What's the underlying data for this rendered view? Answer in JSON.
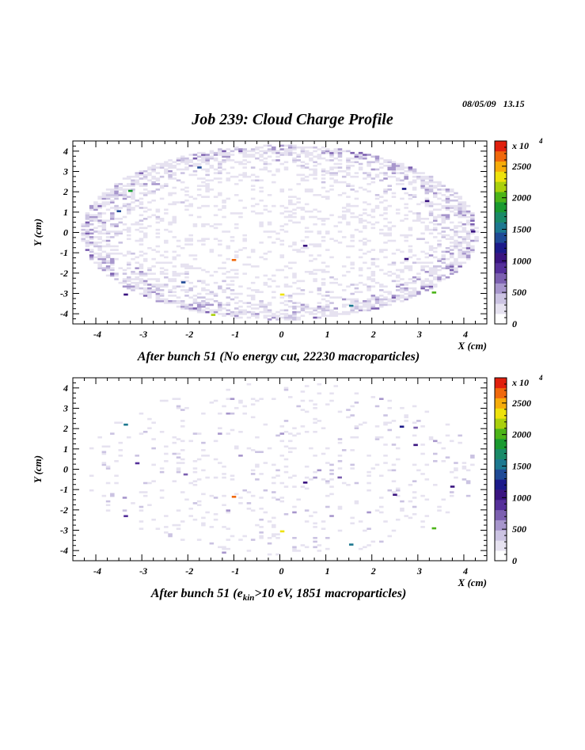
{
  "header": {
    "date": "08/05/09",
    "time": "13.15",
    "title": "Job 239: Cloud Charge Profile"
  },
  "colors": {
    "palette_low_to_high": [
      "#ffffff",
      "#e6e2f0",
      "#cbc3e2",
      "#a796cc",
      "#7c60b0",
      "#55309a",
      "#3a1480",
      "#1c1a8a",
      "#1f4a96",
      "#1d7890",
      "#1a8a68",
      "#1a9a30",
      "#4cb418",
      "#aad00c",
      "#eee20c",
      "#f6ac0a",
      "#f0680c",
      "#e0200e"
    ]
  },
  "chart_data": [
    {
      "type": "heatmap",
      "title": "After bunch 51 (No energy cut, 22230 macroparticles)",
      "xlabel": "X (cm)",
      "ylabel": "Y (cm)",
      "xlim": [
        -4.5,
        4.5
      ],
      "ylim": [
        -4.5,
        4.5
      ],
      "xticks": [
        -4,
        -3,
        -2,
        -1,
        0,
        1,
        2,
        3,
        4
      ],
      "yticks": [
        -4,
        -3,
        -2,
        -1,
        0,
        1,
        2,
        3,
        4
      ],
      "colorbar": {
        "exponent_label": "x 10",
        "exponent_power": "4",
        "ticks": [
          0,
          500,
          1000,
          1500,
          2000,
          2500
        ],
        "max": 2900
      },
      "distribution": {
        "shape": "ellipse",
        "semi_axis_x": 4.3,
        "semi_axis_y": 4.3,
        "profile": "edge-concentrated"
      },
      "hot_bins": [
        {
          "x": -1.0,
          "y": -1.35,
          "value": 2800
        },
        {
          "x": 0.05,
          "y": -3.05,
          "value": 2400
        },
        {
          "x": -1.45,
          "y": -4.05,
          "value": 2300
        },
        {
          "x": 3.35,
          "y": -2.95,
          "value": 2050
        },
        {
          "x": -3.25,
          "y": 2.05,
          "value": 1900
        },
        {
          "x": 1.55,
          "y": -3.6,
          "value": 1500
        },
        {
          "x": -2.1,
          "y": -2.45,
          "value": 1400
        },
        {
          "x": -3.5,
          "y": 1.05,
          "value": 1300
        },
        {
          "x": -1.75,
          "y": 3.2,
          "value": 1400
        },
        {
          "x": 2.7,
          "y": 2.15,
          "value": 1200
        },
        {
          "x": 3.2,
          "y": 1.55,
          "value": 1100
        },
        {
          "x": 2.75,
          "y": -1.3,
          "value": 1050
        },
        {
          "x": 0.55,
          "y": -0.65,
          "value": 1000
        },
        {
          "x": -3.35,
          "y": -3.05,
          "value": 1000
        },
        {
          "x": 4.2,
          "y": 0.05,
          "value": 1100
        }
      ]
    },
    {
      "type": "heatmap",
      "title_prefix": "After bunch 51 (e",
      "title_subscript": "kin",
      "title_suffix": ">10 eV, 1851 macroparticles)",
      "xlabel": "X (cm)",
      "ylabel": "Y (cm)",
      "xlim": [
        -4.5,
        4.5
      ],
      "ylim": [
        -4.5,
        4.5
      ],
      "xticks": [
        -4,
        -3,
        -2,
        -1,
        0,
        1,
        2,
        3,
        4
      ],
      "yticks": [
        -4,
        -3,
        -2,
        -1,
        0,
        1,
        2,
        3,
        4
      ],
      "colorbar": {
        "exponent_label": "x 10",
        "exponent_power": "4",
        "ticks": [
          0,
          500,
          1000,
          1500,
          2000,
          2500
        ],
        "max": 2900
      },
      "distribution": {
        "shape": "ellipse",
        "semi_axis_x": 4.3,
        "semi_axis_y": 4.3,
        "profile": "sparse-uniform"
      },
      "hot_bins": [
        {
          "x": -1.0,
          "y": -1.35,
          "value": 2800
        },
        {
          "x": 0.05,
          "y": -3.05,
          "value": 2400
        },
        {
          "x": 3.35,
          "y": -2.9,
          "value": 2050
        },
        {
          "x": 1.55,
          "y": -3.7,
          "value": 1500
        },
        {
          "x": -3.35,
          "y": 2.2,
          "value": 1500
        },
        {
          "x": 2.65,
          "y": 2.1,
          "value": 1150
        },
        {
          "x": 2.95,
          "y": 1.2,
          "value": 1100
        },
        {
          "x": 3.75,
          "y": -0.85,
          "value": 1050
        },
        {
          "x": 2.5,
          "y": -1.25,
          "value": 1000
        },
        {
          "x": 0.55,
          "y": -0.65,
          "value": 1000
        },
        {
          "x": -3.35,
          "y": -2.3,
          "value": 900
        },
        {
          "x": -3.1,
          "y": 0.3,
          "value": 900
        },
        {
          "x": 2.95,
          "y": 2.05,
          "value": 700
        },
        {
          "x": -2.05,
          "y": -0.25,
          "value": 650
        },
        {
          "x": 1.3,
          "y": -0.4,
          "value": 700
        }
      ]
    }
  ]
}
